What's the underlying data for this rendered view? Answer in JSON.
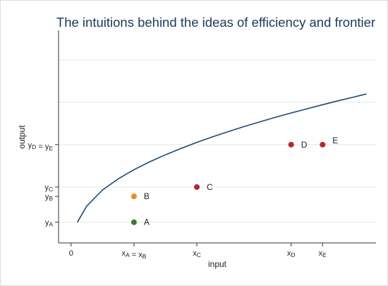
{
  "chart_data": {
    "type": "line",
    "title": "The intuitions behind the ideas of efficiency and frontier",
    "xlabel": "input",
    "ylabel": "output",
    "grid": true,
    "xlim": [
      -0.4,
      9.7
    ],
    "ylim": [
      0,
      10
    ],
    "x_ticks": [
      {
        "value": 0,
        "label": "0"
      },
      {
        "value": 2,
        "label": "xA = xB"
      },
      {
        "value": 4,
        "label": "xC"
      },
      {
        "value": 7,
        "label": "xD"
      },
      {
        "value": 8,
        "label": "xE"
      }
    ],
    "y_ticks": [
      {
        "value": 1.0,
        "label": "yA"
      },
      {
        "value": 2.25,
        "label": "yB"
      },
      {
        "value": 2.7,
        "label": "yC"
      },
      {
        "value": 4.75,
        "label": "yD = yE"
      }
    ],
    "gridlines_y": [
      1.0,
      2.7,
      4.75,
      6.8,
      8.85
    ],
    "frontier": {
      "x": [
        0.2,
        0.5,
        1.0,
        1.5,
        2.0,
        2.5,
        3.0,
        3.5,
        4.0,
        4.5,
        5.0,
        5.5,
        6.0,
        6.5,
        7.0,
        7.5,
        8.0,
        8.5,
        9.0,
        9.4
      ],
      "y": [
        1.0,
        1.79,
        2.56,
        3.1,
        3.54,
        3.92,
        4.26,
        4.57,
        4.86,
        5.13,
        5.38,
        5.62,
        5.85,
        6.07,
        6.28,
        6.48,
        6.68,
        6.87,
        7.05,
        7.2
      ],
      "color": "#1a4a78"
    },
    "points": [
      {
        "label": "A",
        "x": 2,
        "y": 1.0,
        "color": "#3a7a2a"
      },
      {
        "label": "B",
        "x": 2,
        "y": 2.25,
        "color": "#f08a1c"
      },
      {
        "label": "C",
        "x": 4,
        "y": 2.7,
        "color": "#b22a2a"
      },
      {
        "label": "D",
        "x": 7,
        "y": 4.75,
        "color": "#b22a2a"
      },
      {
        "label": "E",
        "x": 8,
        "y": 4.75,
        "color": "#b22a2a"
      }
    ]
  }
}
